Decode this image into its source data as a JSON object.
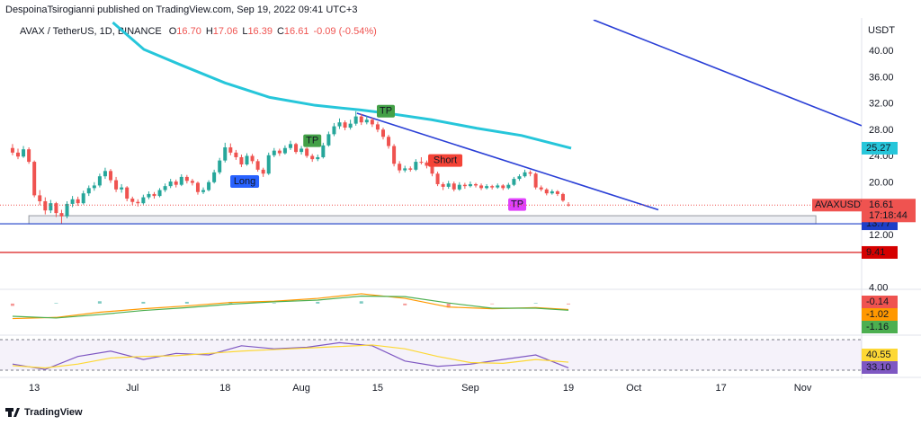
{
  "header": "DespoinaTsirogianni published on TradingView.com, Sep 19, 2022 09:41 UTC+3",
  "footer": "TradingView",
  "chart_data": {
    "type": "candlestick",
    "symbol": "AVAX / TetherUS, 1D, BINANCE",
    "ohlc_legend": [
      {
        "key": "O",
        "text": "16.70"
      },
      {
        "key": "H",
        "text": "17.06"
      },
      {
        "key": "L",
        "text": "16.39"
      },
      {
        "key": "C",
        "text": "16.61"
      }
    ],
    "change": "-0.09 (-0.54%)",
    "currency": "USDT",
    "up_color": "#26a69a",
    "down_color": "#ef5350",
    "candles": [
      [
        25.3,
        25.9,
        24.2,
        24.6
      ],
      [
        24.6,
        25.2,
        23.6,
        24.0
      ],
      [
        24.0,
        25.6,
        23.8,
        25.1
      ],
      [
        25.1,
        25.4,
        22.9,
        23.2
      ],
      [
        23.2,
        23.4,
        17.8,
        18.1
      ],
      [
        18.1,
        18.9,
        16.6,
        17.2
      ],
      [
        17.2,
        17.8,
        15.2,
        15.8
      ],
      [
        15.8,
        17.4,
        15.4,
        16.9
      ],
      [
        16.9,
        17.1,
        14.8,
        15.4
      ],
      [
        15.4,
        15.9,
        13.8,
        14.9
      ],
      [
        14.9,
        17.2,
        14.6,
        16.8
      ],
      [
        16.8,
        18.0,
        16.3,
        17.5
      ],
      [
        17.5,
        17.9,
        16.5,
        16.9
      ],
      [
        16.9,
        18.8,
        16.7,
        18.4
      ],
      [
        18.4,
        19.6,
        18.0,
        19.2
      ],
      [
        19.2,
        20.1,
        18.8,
        19.6
      ],
      [
        19.6,
        21.4,
        19.3,
        21.0
      ],
      [
        21.0,
        22.3,
        20.6,
        21.8
      ],
      [
        21.8,
        22.1,
        20.0,
        20.4
      ],
      [
        20.4,
        20.9,
        18.6,
        19.0
      ],
      [
        19.0,
        19.8,
        18.5,
        19.3
      ],
      [
        19.3,
        19.5,
        17.2,
        17.6
      ],
      [
        17.6,
        17.9,
        16.6,
        17.1
      ],
      [
        17.1,
        17.5,
        16.4,
        16.9
      ],
      [
        16.9,
        18.2,
        16.7,
        17.8
      ],
      [
        17.8,
        18.7,
        17.5,
        18.3
      ],
      [
        18.3,
        18.6,
        17.6,
        18.0
      ],
      [
        18.0,
        19.2,
        17.8,
        18.9
      ],
      [
        18.9,
        19.9,
        18.6,
        19.5
      ],
      [
        19.5,
        20.6,
        19.2,
        20.2
      ],
      [
        20.2,
        20.5,
        19.3,
        19.7
      ],
      [
        19.7,
        21.3,
        19.5,
        20.9
      ],
      [
        20.9,
        21.2,
        19.9,
        20.3
      ],
      [
        20.3,
        20.6,
        19.6,
        20.0
      ],
      [
        20.0,
        20.2,
        18.2,
        18.6
      ],
      [
        18.6,
        19.3,
        18.3,
        18.9
      ],
      [
        18.9,
        20.4,
        18.7,
        20.1
      ],
      [
        20.1,
        22.0,
        19.9,
        21.6
      ],
      [
        21.6,
        23.8,
        21.3,
        23.4
      ],
      [
        23.4,
        26.1,
        23.1,
        25.4
      ],
      [
        25.4,
        26.0,
        24.2,
        24.6
      ],
      [
        24.6,
        25.0,
        23.5,
        23.9
      ],
      [
        23.9,
        24.3,
        22.4,
        22.8
      ],
      [
        22.8,
        24.5,
        22.6,
        24.1
      ],
      [
        24.1,
        24.4,
        22.9,
        23.3
      ],
      [
        23.3,
        23.6,
        21.7,
        22.0
      ],
      [
        22.0,
        22.3,
        20.9,
        21.4
      ],
      [
        21.4,
        24.6,
        21.2,
        24.2
      ],
      [
        24.2,
        25.3,
        23.9,
        24.9
      ],
      [
        24.9,
        25.2,
        24.1,
        24.5
      ],
      [
        24.5,
        25.7,
        24.3,
        25.3
      ],
      [
        25.3,
        26.4,
        25.0,
        25.9
      ],
      [
        25.9,
        26.1,
        24.4,
        24.7
      ],
      [
        24.7,
        25.6,
        24.3,
        25.2
      ],
      [
        25.2,
        25.4,
        23.8,
        24.1
      ],
      [
        24.1,
        24.4,
        23.2,
        23.6
      ],
      [
        23.6,
        24.3,
        23.3,
        23.9
      ],
      [
        23.9,
        26.1,
        23.7,
        25.7
      ],
      [
        25.7,
        27.8,
        25.5,
        27.4
      ],
      [
        27.4,
        29.1,
        27.1,
        28.6
      ],
      [
        28.6,
        29.8,
        28.2,
        29.2
      ],
      [
        29.2,
        29.5,
        28.0,
        28.4
      ],
      [
        28.4,
        29.6,
        28.1,
        29.0
      ],
      [
        29.0,
        30.9,
        28.7,
        30.1
      ],
      [
        30.1,
        30.5,
        28.8,
        29.2
      ],
      [
        29.2,
        30.2,
        28.9,
        29.6
      ],
      [
        29.6,
        29.9,
        28.5,
        28.9
      ],
      [
        28.9,
        29.3,
        27.7,
        28.1
      ],
      [
        28.1,
        28.4,
        26.6,
        27.0
      ],
      [
        27.0,
        27.3,
        25.2,
        25.6
      ],
      [
        25.6,
        25.9,
        22.5,
        22.9
      ],
      [
        22.9,
        23.3,
        21.5,
        21.9
      ],
      [
        21.9,
        22.6,
        21.6,
        22.2
      ],
      [
        22.2,
        22.5,
        21.7,
        22.0
      ],
      [
        22.0,
        23.6,
        21.8,
        23.2
      ],
      [
        23.2,
        23.9,
        22.8,
        23.1
      ],
      [
        23.1,
        23.4,
        22.2,
        22.6
      ],
      [
        22.6,
        22.9,
        21.0,
        21.4
      ],
      [
        21.4,
        21.7,
        19.5,
        19.8
      ],
      [
        19.8,
        20.1,
        18.9,
        19.4
      ],
      [
        19.4,
        20.3,
        19.1,
        19.9
      ],
      [
        19.9,
        20.2,
        18.7,
        19.0
      ],
      [
        19.0,
        20.1,
        18.8,
        19.7
      ],
      [
        19.7,
        20.0,
        19.1,
        19.5
      ],
      [
        19.5,
        20.2,
        19.3,
        19.8
      ],
      [
        19.8,
        20.0,
        19.3,
        19.6
      ],
      [
        19.6,
        19.9,
        18.9,
        19.2
      ],
      [
        19.2,
        19.8,
        19.0,
        19.5
      ],
      [
        19.5,
        19.7,
        19.0,
        19.3
      ],
      [
        19.3,
        19.9,
        19.1,
        19.6
      ],
      [
        19.6,
        19.8,
        18.9,
        19.2
      ],
      [
        19.2,
        20.0,
        19.0,
        19.7
      ],
      [
        19.7,
        20.9,
        19.5,
        20.6
      ],
      [
        20.6,
        21.3,
        20.3,
        21.0
      ],
      [
        21.0,
        22.0,
        20.8,
        21.6
      ],
      [
        21.6,
        21.9,
        21.0,
        21.4
      ],
      [
        21.4,
        21.6,
        19.0,
        19.3
      ],
      [
        19.3,
        19.6,
        18.7,
        19.0
      ],
      [
        19.0,
        19.2,
        18.1,
        18.4
      ],
      [
        18.4,
        19.0,
        18.2,
        18.7
      ],
      [
        18.7,
        18.9,
        18.0,
        18.3
      ],
      [
        18.3,
        18.5,
        17.1,
        17.3
      ],
      [
        16.7,
        17.06,
        16.39,
        16.61
      ]
    ],
    "xlim": [
      -2.3,
      155.8
    ],
    "xticks": [
      {
        "value": 4,
        "label": "13"
      },
      {
        "value": 22,
        "label": "Jul"
      },
      {
        "value": 39,
        "label": "18"
      },
      {
        "value": 53,
        "label": "Aug"
      },
      {
        "value": 67,
        "label": "15"
      },
      {
        "value": 84,
        "label": "Sep"
      },
      {
        "value": 102,
        "label": "19"
      },
      {
        "value": 114,
        "label": "Oct"
      },
      {
        "value": 130,
        "label": "17"
      },
      {
        "value": 145,
        "label": "Nov"
      }
    ],
    "ylim": [
      3.8,
      44.4
    ],
    "yticks": [
      {
        "value": 4,
        "label": "4.00"
      },
      {
        "value": 12,
        "label": "12.00"
      },
      {
        "value": 20,
        "label": "20.00"
      },
      {
        "value": 24,
        "label": "24.00"
      },
      {
        "value": 28,
        "label": "28.00"
      },
      {
        "value": 32,
        "label": "32.00"
      },
      {
        "value": 36,
        "label": "36.00"
      },
      {
        "value": 40,
        "label": "40.00"
      }
    ],
    "moving_average": {
      "color": "#26c6da",
      "x": [
        18.4,
        24.1,
        30.7,
        39,
        47.2,
        55.5,
        63.7,
        68.7,
        76.9,
        85.2,
        93.4,
        102.5
      ],
      "values": [
        44.4,
        40.3,
        38,
        35.2,
        33,
        31.8,
        31.1,
        30.6,
        29.6,
        28.3,
        27.2,
        25.27
      ]
    },
    "trendlines": [
      {
        "color": "#2a3fd6",
        "x": [
          63.2,
          118.5
        ],
        "y": [
          30.6,
          15.9
        ]
      },
      {
        "color": "#2a3fd6",
        "x": [
          106.6,
          155.8
        ],
        "y": [
          44.8,
          28.7
        ]
      }
    ],
    "zone": {
      "x": [
        3.0,
        147.4
      ],
      "y": [
        13.77,
        15.0
      ]
    },
    "levels": [
      {
        "value": 13.77,
        "color": "#1e3fc8"
      },
      {
        "value": 9.41,
        "color": "#d50000"
      }
    ],
    "last_price": {
      "symbol": "AVAXUSDT",
      "countdown": "17:18:44",
      "color": "#ef5350"
    },
    "annotations": [
      {
        "text": "Long",
        "x": 42.6,
        "y": 20.2,
        "color": "#2962ff"
      },
      {
        "text": "TP",
        "x": 55,
        "y": 26.4,
        "color": "#43a047"
      },
      {
        "text": "TP",
        "x": 68.5,
        "y": 30.9,
        "color": "#43a047"
      },
      {
        "text": "Short",
        "x": 79.4,
        "y": 23.4,
        "color": "#f44336"
      },
      {
        "text": "TP",
        "x": 92.6,
        "y": 16.7,
        "color": "#e040fb"
      }
    ],
    "macd": {
      "ylim": [
        -5,
        2
      ],
      "x": [
        0,
        8,
        16,
        24,
        32,
        40,
        48,
        56,
        64,
        72,
        80,
        88,
        96,
        102
      ],
      "histogram": [
        -0.4,
        0.1,
        0.4,
        0.3,
        0.3,
        0.3,
        0.1,
        0.3,
        0.4,
        -0.3,
        -0.7,
        -0.1,
        0.1,
        -0.14
      ],
      "series": [
        {
          "name": "MACD",
          "color": "#ff9800",
          "values": [
            -2.6,
            -2.4,
            -1.5,
            -0.9,
            -0.4,
            0.2,
            0.4,
            0.9,
            1.7,
            0.9,
            -0.6,
            -0.9,
            -0.7,
            -1.02
          ]
        },
        {
          "name": "Signal",
          "color": "#4caf50",
          "values": [
            -2.2,
            -2.5,
            -1.9,
            -1.2,
            -0.7,
            -0.1,
            0.3,
            0.6,
            1.3,
            1.2,
            0.1,
            -0.8,
            -0.8,
            -1.16
          ]
        }
      ]
    },
    "rsi": {
      "ylim": [
        26.5,
        74.7
      ],
      "bands": [
        30,
        70
      ],
      "x": [
        0,
        6,
        12,
        18,
        24,
        30,
        36,
        42,
        48,
        54,
        60,
        66,
        72,
        78,
        84,
        90,
        96,
        102
      ],
      "series": [
        {
          "name": "RSI",
          "color": "#7e57c2",
          "values": [
            38,
            31,
            48,
            55,
            44,
            52,
            50,
            62,
            58,
            60,
            66,
            62,
            42,
            35,
            38,
            44,
            50,
            33.1
          ],
          "last_label": "33.10"
        },
        {
          "name": "RSI MA",
          "color": "#fdd835",
          "values": [
            36,
            33,
            38,
            46,
            48,
            49,
            52,
            55,
            57,
            59,
            61,
            63,
            58,
            48,
            40,
            39,
            44,
            40.55
          ]
        }
      ]
    }
  }
}
